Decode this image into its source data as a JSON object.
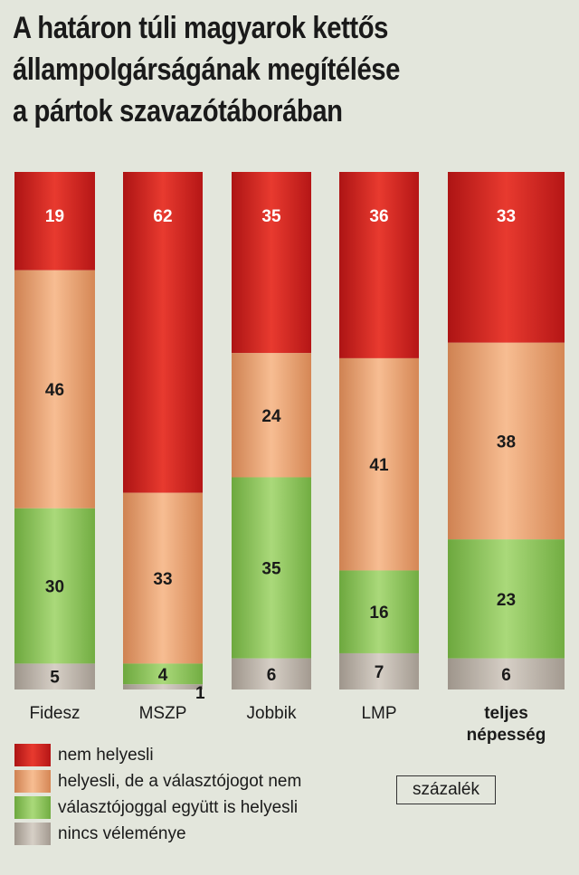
{
  "title": {
    "line1": "A határon túli magyarok kettős",
    "line2": "állampolgárságának megítélése",
    "line3": "a pártok szavazótáborában"
  },
  "unit": "százalék",
  "colors": {
    "nem_helyesli": "#d21e1f",
    "helyesli_de_nem": "#e9a073",
    "valasztojoggal": "#8dc25c",
    "nincs": "#bcb4aa"
  },
  "chart_data": {
    "type": "bar",
    "stacked": true,
    "title": "A határon túli magyarok kettős állampolgárságának megítélése a pártok szavazótáborában",
    "unit": "százalék",
    "categories": [
      "Fidesz",
      "MSZP",
      "Jobbik",
      "LMP",
      "teljes népesség"
    ],
    "series": [
      {
        "name": "nem helyesli",
        "color": "#d21e1f",
        "values": [
          19,
          62,
          35,
          36,
          33
        ]
      },
      {
        "name": "helyesli, de a választójogot nem",
        "color": "#e9a073",
        "values": [
          46,
          33,
          24,
          41,
          38
        ]
      },
      {
        "name": "választójoggal együtt is helyesli",
        "color": "#8dc25c",
        "values": [
          30,
          4,
          35,
          16,
          23
        ]
      },
      {
        "name": "nincs véleménye",
        "color": "#bcb4aa",
        "values": [
          5,
          1,
          6,
          7,
          6
        ]
      }
    ],
    "ylim": [
      0,
      100
    ],
    "legend_position": "bottom-left"
  }
}
